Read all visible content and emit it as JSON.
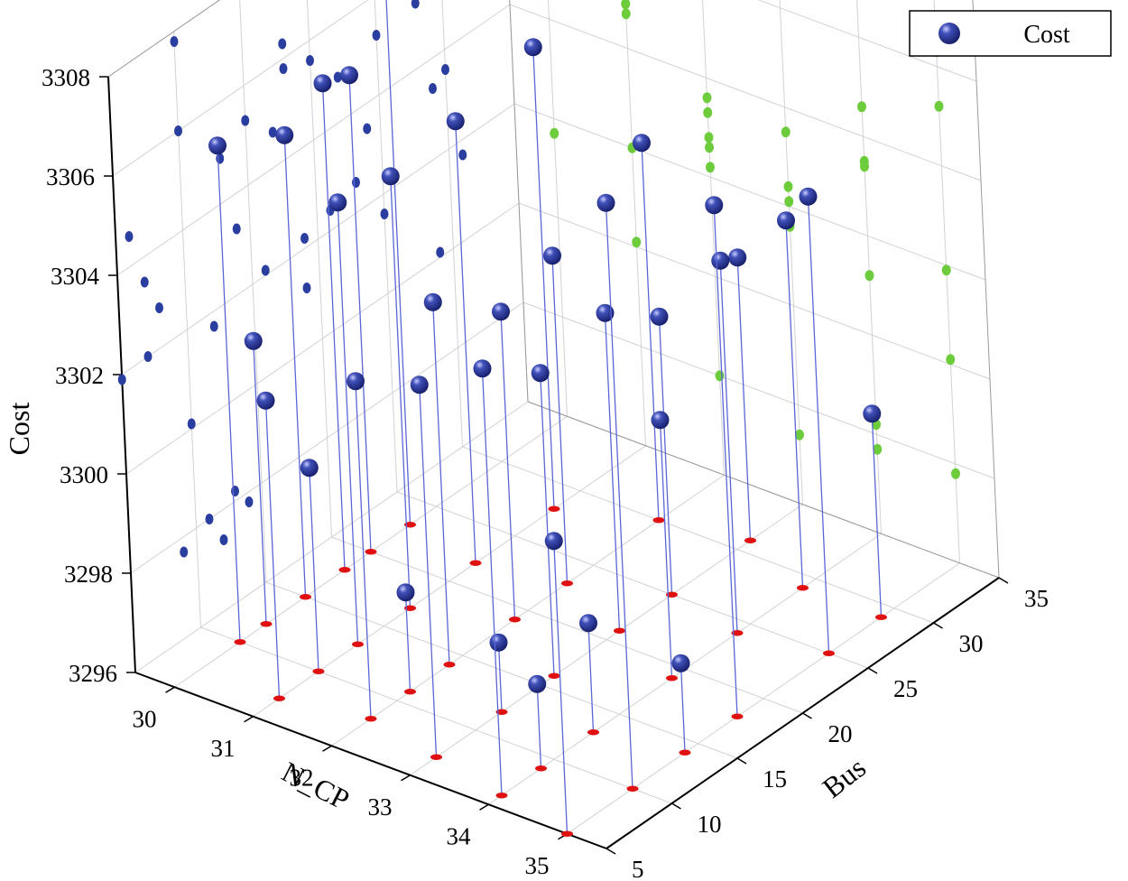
{
  "chart_data": {
    "type": "scatter",
    "subtype": "3d-scatter-with-drop-lines-and-wall-projections",
    "axes": {
      "x": {
        "label": "N_CP",
        "ticks": [
          30,
          31,
          32,
          33,
          34,
          35
        ],
        "range": [
          29.5,
          35.5
        ]
      },
      "y": {
        "label": "Bus",
        "ticks": [
          5,
          10,
          15,
          20,
          25,
          30,
          35
        ],
        "range": [
          5,
          35
        ]
      },
      "z": {
        "label": "Cost",
        "ticks": [
          3296,
          3298,
          3300,
          3302,
          3304,
          3306,
          3308
        ],
        "range": [
          3296,
          3308
        ]
      }
    },
    "legend": {
      "entries": [
        "Cost"
      ],
      "position": "top-right"
    },
    "grid": true,
    "colors": {
      "marker": "#1f2f8c",
      "marker_highlight": "#8a93e0",
      "drop_line": "#5a66d6",
      "base_marker": "#e01010",
      "projection_left_wall": "#2a3ea0",
      "projection_back_wall": "#6ccc3c",
      "grid": "#d2d2d2",
      "axis": "#000000"
    },
    "series": [
      {
        "name": "Cost",
        "points": [
          {
            "ncp": 30,
            "bus": 10,
            "cost": 3306.0
          },
          {
            "ncp": 30,
            "bus": 12,
            "cost": 3301.7
          },
          {
            "ncp": 30,
            "bus": 15,
            "cost": 3305.3
          },
          {
            "ncp": 30,
            "bus": 18,
            "cost": 3305.8
          },
          {
            "ncp": 30,
            "bus": 20,
            "cost": 3305.6
          },
          {
            "ncp": 30,
            "bus": 23,
            "cost": 3308.6
          },
          {
            "ncp": 31,
            "bus": 7,
            "cost": 3302.0
          },
          {
            "ncp": 31,
            "bus": 10,
            "cost": 3300.1
          },
          {
            "ncp": 31,
            "bus": 13,
            "cost": 3304.9
          },
          {
            "ncp": 31,
            "bus": 17,
            "cost": 3304.7
          },
          {
            "ncp": 31,
            "bus": 22,
            "cost": 3304.9
          },
          {
            "ncp": 31,
            "bus": 28,
            "cost": 3305.3
          },
          {
            "ncp": 32,
            "bus": 8,
            "cost": 3302.8
          },
          {
            "ncp": 32,
            "bus": 11,
            "cost": 3298.0
          },
          {
            "ncp": 32,
            "bus": 14,
            "cost": 3303.3
          },
          {
            "ncp": 32,
            "bus": 19,
            "cost": 3302.2
          },
          {
            "ncp": 32,
            "bus": 23,
            "cost": 3302.6
          },
          {
            "ncp": 32,
            "bus": 30,
            "cost": 3303.6
          },
          {
            "ncp": 33,
            "bus": 7,
            "cost": 3303.5
          },
          {
            "ncp": 33,
            "bus": 12,
            "cost": 3297.4
          },
          {
            "ncp": 33,
            "bus": 16,
            "cost": 3302.1
          },
          {
            "ncp": 33,
            "bus": 21,
            "cost": 3302.4
          },
          {
            "ncp": 33,
            "bus": 25,
            "cost": 3301.6
          },
          {
            "ncp": 33,
            "bus": 31,
            "cost": 3301.7
          },
          {
            "ncp": 34,
            "bus": 6,
            "cost": 3304.6
          },
          {
            "ncp": 34,
            "bus": 9,
            "cost": 3297.7
          },
          {
            "ncp": 34,
            "bus": 13,
            "cost": 3298.2
          },
          {
            "ncp": 34,
            "bus": 19,
            "cost": 3301.2
          },
          {
            "ncp": 34,
            "bus": 24,
            "cost": 3303.5
          },
          {
            "ncp": 34,
            "bus": 29,
            "cost": 3303.4
          },
          {
            "ncp": 35,
            "bus": 5,
            "cost": 3301.9
          },
          {
            "ncp": 35,
            "bus": 10,
            "cost": 3307.8
          },
          {
            "ncp": 35,
            "bus": 14,
            "cost": 3297.8
          },
          {
            "ncp": 35,
            "bus": 18,
            "cost": 3306.3
          },
          {
            "ncp": 35,
            "bus": 25,
            "cost": 3305.2
          },
          {
            "ncp": 35,
            "bus": 29,
            "cost": 3300.1
          }
        ]
      }
    ]
  }
}
